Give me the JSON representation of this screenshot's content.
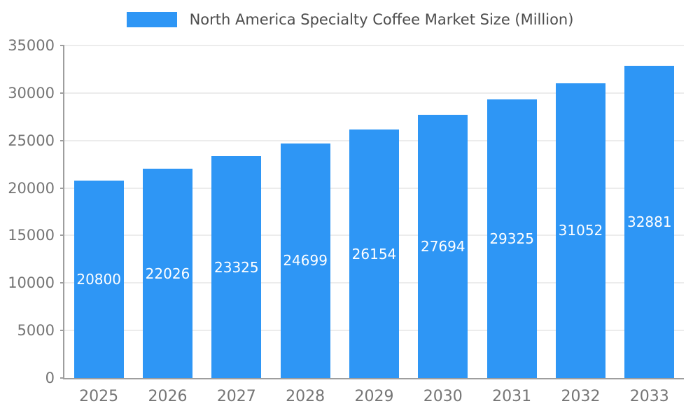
{
  "chart_data": {
    "type": "bar",
    "title": "North America Specialty Coffee Market Size (Million)",
    "categories": [
      "2025",
      "2026",
      "2027",
      "2028",
      "2029",
      "2030",
      "2031",
      "2032",
      "2033"
    ],
    "values": [
      20800,
      22026,
      23325,
      24699,
      26154,
      27694,
      29325,
      31052,
      32881
    ],
    "xlabel": "",
    "ylabel": "",
    "ylim": [
      0,
      35000
    ],
    "ytick_step": 5000,
    "legend_position": "top",
    "legend_label": "North America Specialty Coffee Market Size (Million)",
    "grid": true,
    "value_labels": "inside-center"
  },
  "colors": {
    "bar": "#2E96F5",
    "value_text": "#ffffff",
    "axis_text": "#757575",
    "grid_line": "#d9d9d9",
    "axis_line": "#9e9e9e",
    "legend_text": "#4d4d4d"
  }
}
